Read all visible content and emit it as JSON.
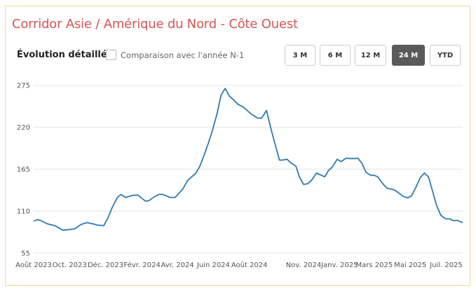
{
  "card": {
    "title": "Corridor Asie / Amérique du Nord - Côte Ouest",
    "subtitle": "Évolution détaillée",
    "comparison_label": "Comparaison avec l'année N-1",
    "comparison_checked": false,
    "range_buttons": [
      {
        "label": "3 M",
        "active": false
      },
      {
        "label": "6 M",
        "active": false
      },
      {
        "label": "12 M",
        "active": false
      },
      {
        "label": "24 M",
        "active": true
      },
      {
        "label": "YTD",
        "active": false
      }
    ]
  },
  "colors": {
    "title": "#d9534f",
    "line": "#2e7bb4",
    "border": "#efdc93",
    "active_button": "#5a5a5a"
  },
  "chart_data": {
    "type": "line",
    "title": "",
    "xlabel": "",
    "ylabel": "",
    "ylim": [
      55,
      275
    ],
    "yticks": [
      55,
      110,
      165,
      220,
      275
    ],
    "grid": "horizontal",
    "xlim": [
      "2023-08-01",
      "2025-07-29"
    ],
    "xticks": [
      {
        "date": "2023-08-01",
        "label": "Août 2023"
      },
      {
        "date": "2023-10-01",
        "label": "Oct. 2023"
      },
      {
        "date": "2023-12-01",
        "label": "Déc. 2023"
      },
      {
        "date": "2024-02-01",
        "label": "Févr. 2024"
      },
      {
        "date": "2024-04-01",
        "label": "Avr. 2024"
      },
      {
        "date": "2024-06-01",
        "label": "Juin 2024"
      },
      {
        "date": "2024-08-01",
        "label": "Août 2024"
      },
      {
        "date": "2024-11-01",
        "label": "Nov. 2024"
      },
      {
        "date": "2025-01-01",
        "label": "Janv. 2025"
      },
      {
        "date": "2025-03-01",
        "label": "Mars 2025"
      },
      {
        "date": "2025-05-01",
        "label": "Mai 2025"
      },
      {
        "date": "2025-07-01",
        "label": "Juil. 2025"
      }
    ],
    "series": [
      {
        "points": [
          [
            "2023-08-01",
            97
          ],
          [
            "2023-08-08",
            99
          ],
          [
            "2023-08-15",
            97
          ],
          [
            "2023-08-24",
            93.5
          ],
          [
            "2023-09-06",
            91
          ],
          [
            "2023-09-20",
            85
          ],
          [
            "2023-10-02",
            86
          ],
          [
            "2023-10-10",
            87
          ],
          [
            "2023-10-20",
            92.5
          ],
          [
            "2023-10-30",
            95
          ],
          [
            "2023-11-09",
            93.5
          ],
          [
            "2023-11-18",
            91.7
          ],
          [
            "2023-11-28",
            91
          ],
          [
            "2023-12-05",
            101
          ],
          [
            "2023-12-13",
            116
          ],
          [
            "2023-12-21",
            128
          ],
          [
            "2023-12-27",
            132
          ],
          [
            "2024-01-04",
            128
          ],
          [
            "2024-01-17",
            131
          ],
          [
            "2024-01-25",
            131
          ],
          [
            "2024-02-07",
            123
          ],
          [
            "2024-02-13",
            124
          ],
          [
            "2024-02-22",
            129
          ],
          [
            "2024-03-01",
            132
          ],
          [
            "2024-03-07",
            132
          ],
          [
            "2024-03-20",
            128
          ],
          [
            "2024-03-28",
            128
          ],
          [
            "2024-04-10",
            139
          ],
          [
            "2024-04-18",
            150
          ],
          [
            "2024-04-25",
            155
          ],
          [
            "2024-05-02",
            159.5
          ],
          [
            "2024-05-09",
            169
          ],
          [
            "2024-05-16",
            183
          ],
          [
            "2024-05-23",
            198
          ],
          [
            "2024-05-30",
            215
          ],
          [
            "2024-06-07",
            237
          ],
          [
            "2024-06-14",
            262
          ],
          [
            "2024-06-21",
            271
          ],
          [
            "2024-06-28",
            261
          ],
          [
            "2024-07-05",
            256
          ],
          [
            "2024-07-13",
            250
          ],
          [
            "2024-07-22",
            246.5
          ],
          [
            "2024-08-03",
            238
          ],
          [
            "2024-08-15",
            232
          ],
          [
            "2024-08-22",
            232
          ],
          [
            "2024-08-30",
            242
          ],
          [
            "2024-09-09",
            211
          ],
          [
            "2024-09-21",
            177
          ],
          [
            "2024-09-26",
            177
          ],
          [
            "2024-10-04",
            178
          ],
          [
            "2024-10-11",
            173
          ],
          [
            "2024-10-19",
            169
          ],
          [
            "2024-10-25",
            155
          ],
          [
            "2024-11-01",
            145
          ],
          [
            "2024-11-08",
            146
          ],
          [
            "2024-11-15",
            151
          ],
          [
            "2024-11-23",
            160
          ],
          [
            "2024-11-30",
            157.5
          ],
          [
            "2024-12-07",
            155
          ],
          [
            "2024-12-13",
            163
          ],
          [
            "2024-12-20",
            168
          ],
          [
            "2024-12-28",
            178
          ],
          [
            "2025-01-04",
            175
          ],
          [
            "2025-01-12",
            179.5
          ],
          [
            "2025-01-20",
            179
          ],
          [
            "2025-01-26",
            179
          ],
          [
            "2025-02-01",
            179.5
          ],
          [
            "2025-02-08",
            173
          ],
          [
            "2025-02-15",
            161
          ],
          [
            "2025-02-23",
            157
          ],
          [
            "2025-03-01",
            157
          ],
          [
            "2025-03-07",
            155
          ],
          [
            "2025-03-16",
            145.5
          ],
          [
            "2025-03-23",
            140
          ],
          [
            "2025-03-30",
            139
          ],
          [
            "2025-04-05",
            137.5
          ],
          [
            "2025-04-13",
            133
          ],
          [
            "2025-04-20",
            129
          ],
          [
            "2025-04-27",
            127.5
          ],
          [
            "2025-05-03",
            130
          ],
          [
            "2025-05-11",
            142
          ],
          [
            "2025-05-18",
            154
          ],
          [
            "2025-05-25",
            160
          ],
          [
            "2025-06-01",
            155
          ],
          [
            "2025-06-08",
            136
          ],
          [
            "2025-06-15",
            117
          ],
          [
            "2025-06-22",
            104.5
          ],
          [
            "2025-06-30",
            100
          ],
          [
            "2025-07-07",
            100
          ],
          [
            "2025-07-13",
            97.5
          ],
          [
            "2025-07-20",
            98
          ],
          [
            "2025-07-29",
            95
          ]
        ]
      }
    ]
  }
}
